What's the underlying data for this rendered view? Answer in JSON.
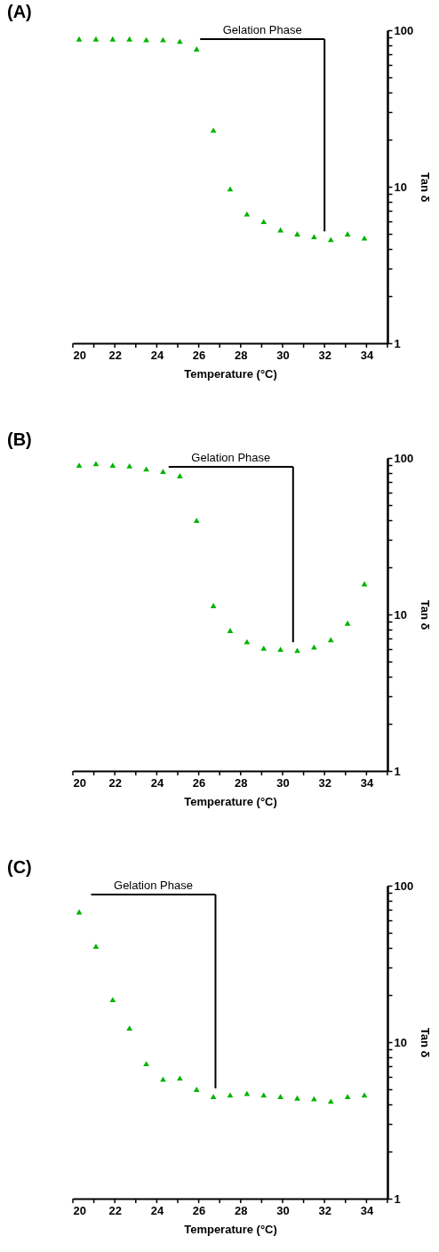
{
  "chart_data": [
    {
      "type": "scatter",
      "title": "(A)",
      "xlabel": "Temperature (°C)",
      "ylabel": "Tan δ",
      "color": "#00b400",
      "marker": "triangle",
      "log": "y",
      "x": [
        20.3,
        21.1,
        21.9,
        22.7,
        23.5,
        24.3,
        25.1,
        25.9,
        26.7,
        27.5,
        28.3,
        29.1,
        29.9,
        30.7,
        31.5,
        32.3,
        33.1,
        33.9
      ],
      "values": [
        88,
        88,
        88,
        88,
        87,
        87,
        85,
        76,
        23,
        9.7,
        6.7,
        6.0,
        5.3,
        5.0,
        4.8,
        4.6,
        5.0,
        4.7
      ],
      "xlim": [
        20,
        35
      ],
      "xticks": [
        20,
        {
          "value": 21,
          "label": null
        },
        22,
        {
          "value": 23,
          "label": null
        },
        24,
        {
          "value": 25,
          "label": null
        },
        26,
        {
          "value": 27,
          "label": null
        },
        28,
        {
          "value": 29,
          "label": null
        },
        30,
        {
          "value": 31,
          "label": null
        },
        32,
        {
          "value": 33,
          "label": null
        },
        34,
        {
          "value": 35,
          "label": null
        }
      ],
      "ylim": [
        1,
        100
      ],
      "yticks": [
        1,
        {
          "value": 2,
          "label": null
        },
        {
          "value": 3,
          "label": null
        },
        {
          "value": 4,
          "label": null
        },
        {
          "value": 5,
          "label": null
        },
        {
          "value": 6,
          "label": null
        },
        {
          "value": 7,
          "label": null
        },
        {
          "value": 8,
          "label": null
        },
        {
          "value": 9,
          "label": null
        },
        10,
        {
          "value": 20,
          "label": null
        },
        {
          "value": 30,
          "label": null
        },
        {
          "value": 40,
          "label": null
        },
        {
          "value": 50,
          "label": null
        },
        {
          "value": 60,
          "label": null
        },
        {
          "value": 70,
          "label": null
        },
        {
          "value": 80,
          "label": null
        },
        {
          "value": 90,
          "label": null
        },
        100
      ],
      "ref_lines": [
        {
          "axis": "x",
          "value": 32,
          "label": "Gelation Phase"
        }
      ]
    },
    {
      "type": "scatter",
      "title": "(B)",
      "xlabel": "Temperature (°C)",
      "ylabel": "Tan δ",
      "color": "#00b400",
      "marker": "triangle",
      "log": "y",
      "x": [
        20.3,
        21.1,
        21.9,
        22.7,
        23.5,
        24.3,
        25.1,
        25.9,
        26.7,
        27.5,
        28.3,
        29.1,
        29.9,
        30.7,
        31.5,
        32.3,
        33.1,
        33.9
      ],
      "values": [
        90,
        92,
        90,
        89,
        85,
        82,
        77,
        40,
        11.4,
        7.9,
        6.7,
        6.1,
        6.0,
        5.9,
        6.2,
        6.9,
        8.8,
        15.7
      ],
      "xlim": [
        20,
        35
      ],
      "xticks": [
        20,
        {
          "value": 21,
          "label": null
        },
        22,
        {
          "value": 23,
          "label": null
        },
        24,
        {
          "value": 25,
          "label": null
        },
        26,
        {
          "value": 27,
          "label": null
        },
        28,
        {
          "value": 29,
          "label": null
        },
        30,
        {
          "value": 31,
          "label": null
        },
        32,
        {
          "value": 33,
          "label": null
        },
        34,
        {
          "value": 35,
          "label": null
        }
      ],
      "ylim": [
        1,
        100
      ],
      "yticks": [
        1,
        {
          "value": 2,
          "label": null
        },
        {
          "value": 3,
          "label": null
        },
        {
          "value": 4,
          "label": null
        },
        {
          "value": 5,
          "label": null
        },
        {
          "value": 6,
          "label": null
        },
        {
          "value": 7,
          "label": null
        },
        {
          "value": 8,
          "label": null
        },
        {
          "value": 9,
          "label": null
        },
        10,
        {
          "value": 20,
          "label": null
        },
        {
          "value": 30,
          "label": null
        },
        {
          "value": 40,
          "label": null
        },
        {
          "value": 50,
          "label": null
        },
        {
          "value": 60,
          "label": null
        },
        {
          "value": 70,
          "label": null
        },
        {
          "value": 80,
          "label": null
        },
        {
          "value": 90,
          "label": null
        },
        100
      ],
      "ref_lines": [
        {
          "axis": "x",
          "value": 30.5,
          "label": "Gelation Phase"
        }
      ]
    },
    {
      "type": "scatter",
      "title": "(C)",
      "xlabel": "Temperature (°C)",
      "ylabel": "Tan δ",
      "color": "#00b400",
      "marker": "triangle",
      "log": "y",
      "x": [
        20.3,
        21.1,
        21.9,
        22.7,
        23.5,
        24.3,
        25.1,
        25.9,
        26.7,
        27.5,
        28.3,
        29.1,
        29.9,
        30.7,
        31.5,
        32.3,
        33.1,
        33.9
      ],
      "values": [
        68,
        41,
        18.7,
        12.3,
        7.3,
        5.8,
        5.9,
        5.0,
        4.5,
        4.6,
        4.7,
        4.6,
        4.5,
        4.4,
        4.35,
        4.2,
        4.5,
        4.6
      ],
      "xlim": [
        20,
        35
      ],
      "xticks": [
        20,
        {
          "value": 21,
          "label": null
        },
        22,
        {
          "value": 23,
          "label": null
        },
        24,
        {
          "value": 25,
          "label": null
        },
        26,
        {
          "value": 27,
          "label": null
        },
        28,
        {
          "value": 29,
          "label": null
        },
        30,
        {
          "value": 31,
          "label": null
        },
        32,
        {
          "value": 33,
          "label": null
        },
        34,
        {
          "value": 35,
          "label": null
        }
      ],
      "ylim": [
        1,
        100
      ],
      "yticks": [
        1,
        {
          "value": 2,
          "label": null
        },
        {
          "value": 3,
          "label": null
        },
        {
          "value": 4,
          "label": null
        },
        {
          "value": 5,
          "label": null
        },
        {
          "value": 6,
          "label": null
        },
        {
          "value": 7,
          "label": null
        },
        {
          "value": 8,
          "label": null
        },
        {
          "value": 9,
          "label": null
        },
        10,
        {
          "value": 20,
          "label": null
        },
        {
          "value": 30,
          "label": null
        },
        {
          "value": 40,
          "label": null
        },
        {
          "value": 50,
          "label": null
        },
        {
          "value": 60,
          "label": null
        },
        {
          "value": 70,
          "label": null
        },
        {
          "value": 80,
          "label": null
        },
        {
          "value": 90,
          "label": null
        },
        100
      ],
      "ref_lines": [
        {
          "axis": "x",
          "value": 26.8,
          "label": "Gelation Phase"
        }
      ]
    }
  ]
}
